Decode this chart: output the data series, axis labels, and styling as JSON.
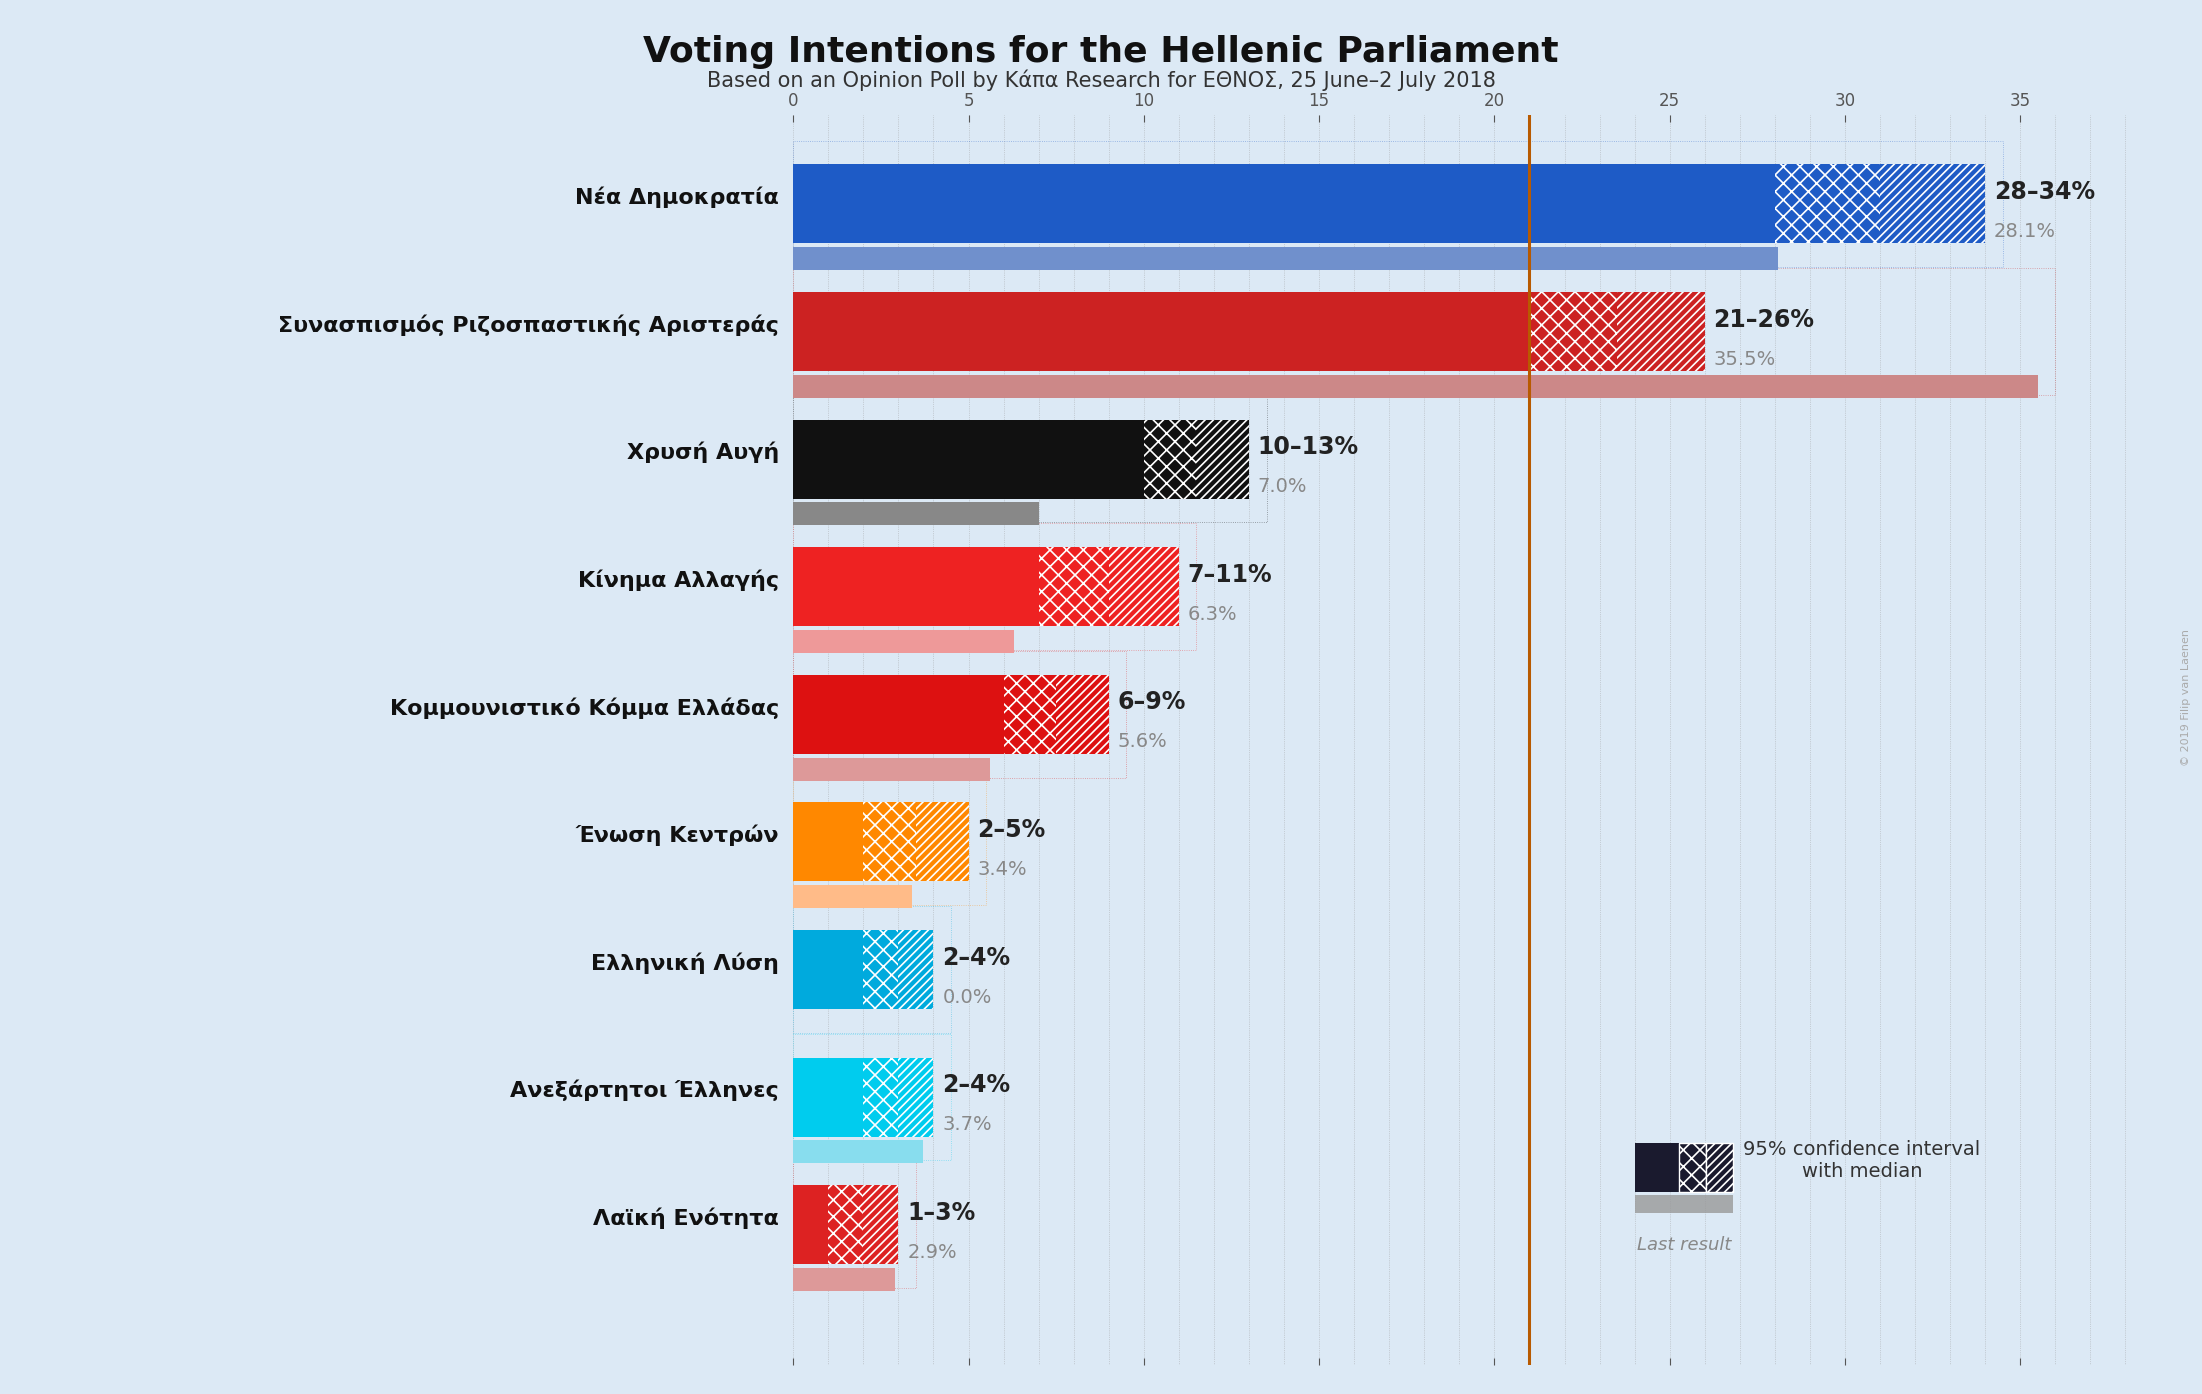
{
  "title": "Voting Intentions for the Hellenic Parliament",
  "subtitle": "Based on an Opinion Poll by Κάπα Research for ΕΘΝΟΣ, 25 June–2 July 2018",
  "background_color": "#dce9f5",
  "parties": [
    {
      "name": "Νέα Δημοκρατία",
      "ci_low": 28,
      "ci_high": 34,
      "median": 31,
      "last_result": 28.1,
      "color": "#1e5bc6",
      "last_color": "#7090cc"
    },
    {
      "name": "Συνασπισμός Ριζοσπαστικής Αριστεράς",
      "ci_low": 21,
      "ci_high": 26,
      "median": 23.5,
      "last_result": 35.5,
      "color": "#cc2222",
      "last_color": "#cc8888"
    },
    {
      "name": "Χρυσή Αυγή",
      "ci_low": 10,
      "ci_high": 13,
      "median": 11.5,
      "last_result": 7.0,
      "color": "#111111",
      "last_color": "#888888"
    },
    {
      "name": "Κίνημα Αλλαγής",
      "ci_low": 7,
      "ci_high": 11,
      "median": 9,
      "last_result": 6.3,
      "color": "#ee2222",
      "last_color": "#ee9999"
    },
    {
      "name": "Κομμουνιστικό Κόμμα Ελλάδας",
      "ci_low": 6,
      "ci_high": 9,
      "median": 7.5,
      "last_result": 5.6,
      "color": "#dd1111",
      "last_color": "#dd9999"
    },
    {
      "name": "Ένωση Κεντρών",
      "ci_low": 2,
      "ci_high": 5,
      "median": 3.5,
      "last_result": 3.4,
      "color": "#ff8800",
      "last_color": "#ffbb88"
    },
    {
      "name": "Ελληνική Λύση",
      "ci_low": 2,
      "ci_high": 4,
      "median": 3,
      "last_result": 0.0,
      "color": "#00aadd",
      "last_color": "#88ccee"
    },
    {
      "name": "Ανεξάρτητοι Έλληνες",
      "ci_low": 2,
      "ci_high": 4,
      "median": 3,
      "last_result": 3.7,
      "color": "#00ccee",
      "last_color": "#88ddee"
    },
    {
      "name": "Λαϊκή Ενότητα",
      "ci_low": 1,
      "ci_high": 3,
      "median": 2,
      "last_result": 2.9,
      "color": "#dd2222",
      "last_color": "#dd9999"
    }
  ],
  "median_line_x": 21.0,
  "median_line_color": "#b85a00",
  "axis_max": 38,
  "tick_interval": 5,
  "copyright_text": "© 2019 Filip van Laenen"
}
